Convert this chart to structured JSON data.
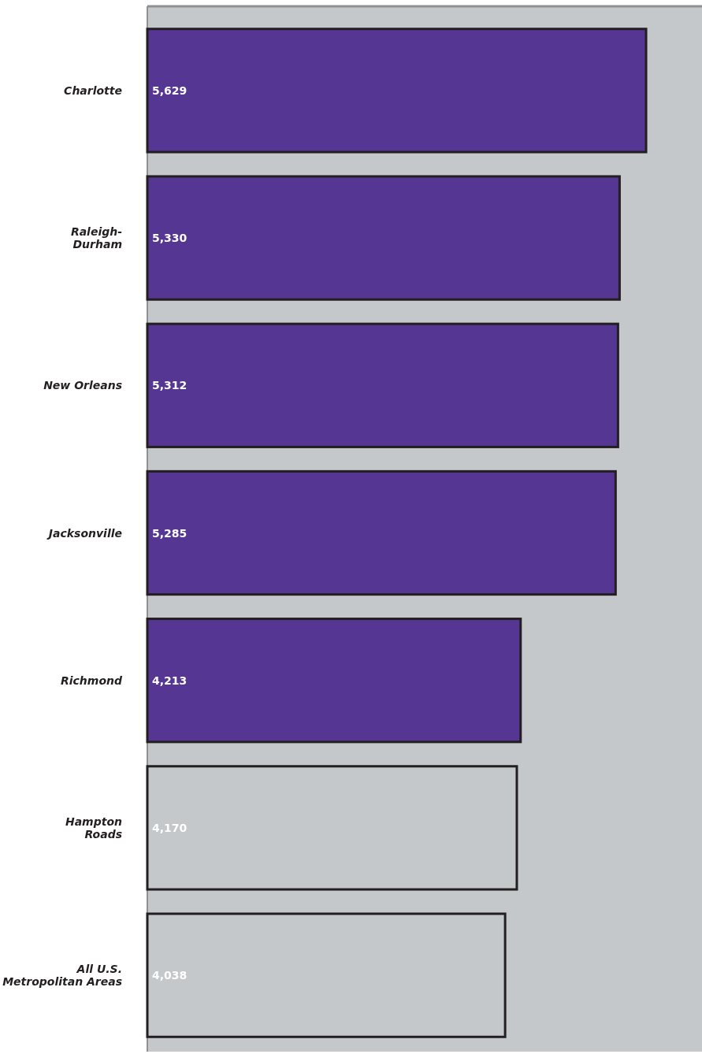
{
  "chart_data": {
    "type": "bar",
    "orientation": "horizontal",
    "categories": [
      "Charlotte",
      "Raleigh-Durham",
      "New Orleans",
      "Jacksonville",
      "Richmond",
      "Hampton Roads",
      "All U.S. Metropolitan Areas"
    ],
    "values": [
      5629,
      5330,
      5312,
      5285,
      4213,
      4170,
      4038
    ],
    "colors": [
      "#553692",
      "#553692",
      "#553692",
      "#553692",
      "#553692",
      "#c5c8cb",
      "#c5c8cb"
    ],
    "value_labels": [
      "5,629",
      "5,330",
      "5,312",
      "5,285",
      "4,213",
      "4,170",
      "4,038"
    ]
  }
}
